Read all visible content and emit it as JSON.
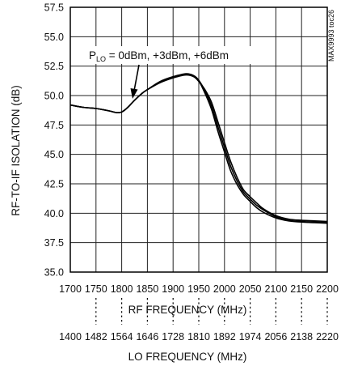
{
  "chart_data": {
    "type": "line",
    "title": "",
    "xlabel": "RF FREQUENCY (MHz)",
    "x2label": "LO FREQUENCY (MHz)",
    "ylabel": "RF-TO-IF ISOLATION (dB)",
    "xlim": [
      1700,
      2200
    ],
    "ylim": [
      35.0,
      57.5
    ],
    "xticks": [
      "1700",
      "1750",
      "1800",
      "1850",
      "1900",
      "1950",
      "2000",
      "2050",
      "2100",
      "2150",
      "2200"
    ],
    "x2ticks": [
      "1400",
      "1482",
      "1564",
      "1646",
      "1728",
      "1810",
      "1892",
      "1974",
      "2056",
      "2138",
      "2220"
    ],
    "yticks": [
      "35.0",
      "37.5",
      "40.0",
      "42.5",
      "45.0",
      "47.5",
      "50.0",
      "52.5",
      "55.0",
      "57.5"
    ],
    "grid": true,
    "annotation": {
      "prefix": "P",
      "subscript": "LO",
      "text": " = 0dBm, +3dBm, +6dBm"
    },
    "figure_code": "MAX9993 toc26",
    "series": [
      {
        "x": [
          1700,
          1725,
          1750,
          1775,
          1790,
          1800,
          1812,
          1825,
          1840,
          1850,
          1875,
          1900,
          1925,
          1940,
          1950,
          1962,
          1975,
          1987,
          2000,
          2012,
          2025,
          2037,
          2050,
          2062,
          2075,
          2100,
          2125,
          2150,
          2175,
          2200
        ],
        "values": [
          49.2,
          49.0,
          48.9,
          48.7,
          48.55,
          48.6,
          49.0,
          49.6,
          50.2,
          50.5,
          51.1,
          51.5,
          51.75,
          51.6,
          51.2,
          50.5,
          49.4,
          47.8,
          46.0,
          44.4,
          43.0,
          42.0,
          41.4,
          40.9,
          40.4,
          39.8,
          39.5,
          39.4,
          39.35,
          39.3
        ]
      },
      {
        "x": [
          1700,
          1725,
          1750,
          1775,
          1790,
          1800,
          1812,
          1825,
          1840,
          1850,
          1875,
          1900,
          1925,
          1940,
          1950,
          1962,
          1975,
          1987,
          2000,
          2012,
          2025,
          2037,
          2050,
          2062,
          2075,
          2100,
          2125,
          2150,
          2175,
          2200
        ],
        "values": [
          49.2,
          49.0,
          48.9,
          48.7,
          48.55,
          48.6,
          49.0,
          49.6,
          50.2,
          50.5,
          51.2,
          51.6,
          51.85,
          51.7,
          51.3,
          50.4,
          49.1,
          47.4,
          45.6,
          44.0,
          42.7,
          41.8,
          41.2,
          40.7,
          40.3,
          39.7,
          39.4,
          39.3,
          39.25,
          39.2
        ]
      },
      {
        "x": [
          1700,
          1725,
          1750,
          1775,
          1790,
          1800,
          1812,
          1825,
          1840,
          1850,
          1875,
          1900,
          1925,
          1940,
          1950,
          1962,
          1975,
          1987,
          2000,
          2012,
          2025,
          2037,
          2050,
          2062,
          2075,
          2100,
          2125,
          2150,
          2175,
          2200
        ],
        "values": [
          49.2,
          49.0,
          48.9,
          48.7,
          48.55,
          48.6,
          49.0,
          49.6,
          50.2,
          50.5,
          51.15,
          51.55,
          51.8,
          51.65,
          51.25,
          50.2,
          48.8,
          47.0,
          45.2,
          43.6,
          42.4,
          41.6,
          41.0,
          40.5,
          40.1,
          39.6,
          39.35,
          39.25,
          39.2,
          39.15
        ]
      }
    ]
  }
}
